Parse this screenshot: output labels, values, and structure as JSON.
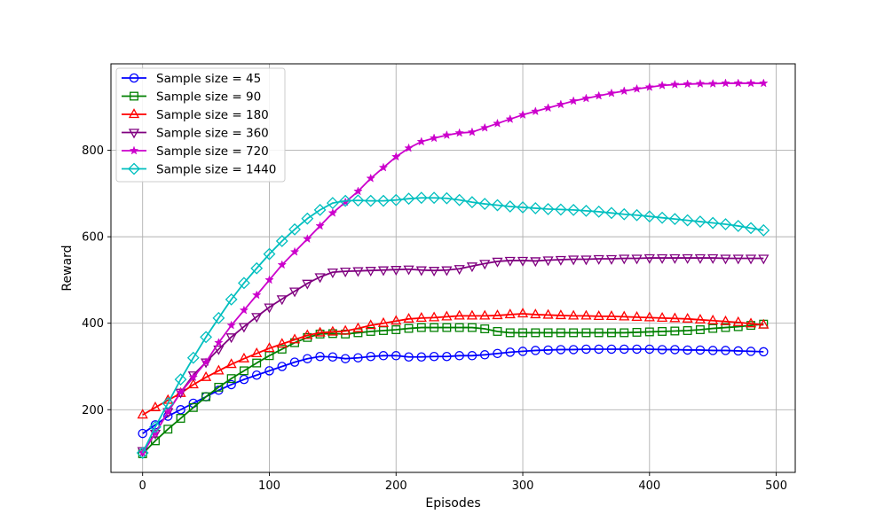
{
  "chart_data": {
    "type": "line",
    "xlabel": "Episodes",
    "ylabel": "Reward",
    "xlim": [
      -25,
      515
    ],
    "ylim": [
      55,
      1000
    ],
    "xticks": [
      0,
      100,
      200,
      300,
      400,
      500
    ],
    "yticks": [
      200,
      400,
      600,
      800
    ],
    "grid": true,
    "legend_position": "top-left",
    "x": [
      0,
      10,
      20,
      30,
      40,
      50,
      60,
      70,
      80,
      90,
      100,
      110,
      120,
      130,
      140,
      150,
      160,
      170,
      180,
      190,
      200,
      210,
      220,
      230,
      240,
      250,
      260,
      270,
      280,
      290,
      300,
      310,
      320,
      330,
      340,
      350,
      360,
      370,
      380,
      390,
      400,
      410,
      420,
      430,
      440,
      450,
      460,
      470,
      480,
      490
    ],
    "series": [
      {
        "name": "Sample size = 45",
        "color": "#0000ff",
        "marker": "circle",
        "values": [
          145,
          165,
          185,
          200,
          215,
          230,
          245,
          258,
          270,
          280,
          290,
          300,
          310,
          318,
          323,
          322,
          318,
          320,
          323,
          325,
          325,
          322,
          322,
          323,
          323,
          325,
          325,
          327,
          330,
          333,
          335,
          337,
          338,
          339,
          339,
          340,
          340,
          340,
          340,
          340,
          340,
          339,
          339,
          338,
          338,
          337,
          337,
          336,
          335,
          334
        ]
      },
      {
        "name": "Sample size = 90",
        "color": "#008000",
        "marker": "square",
        "values": [
          98,
          128,
          155,
          180,
          205,
          230,
          252,
          272,
          290,
          308,
          325,
          340,
          355,
          367,
          375,
          376,
          375,
          378,
          381,
          383,
          385,
          388,
          390,
          390,
          390,
          390,
          390,
          387,
          381,
          378,
          378,
          378,
          378,
          378,
          378,
          378,
          378,
          378,
          378,
          379,
          380,
          381,
          382,
          383,
          385,
          388,
          390,
          392,
          395,
          398
        ]
      },
      {
        "name": "Sample size = 180",
        "color": "#ff0000",
        "marker": "triangle-up",
        "values": [
          188,
          205,
          222,
          238,
          258,
          275,
          290,
          305,
          318,
          330,
          342,
          352,
          362,
          372,
          378,
          380,
          382,
          388,
          395,
          400,
          405,
          410,
          412,
          413,
          415,
          417,
          417,
          417,
          418,
          420,
          422,
          420,
          419,
          418,
          417,
          417,
          416,
          416,
          415,
          414,
          413,
          412,
          411,
          410,
          408,
          406,
          404,
          402,
          399,
          396
        ]
      },
      {
        "name": "Sample size = 360",
        "color": "#800080",
        "marker": "triangle-down",
        "values": [
          105,
          145,
          195,
          240,
          280,
          310,
          340,
          368,
          392,
          415,
          437,
          456,
          474,
          492,
          507,
          518,
          520,
          521,
          522,
          523,
          524,
          525,
          523,
          522,
          523,
          526,
          532,
          538,
          543,
          545,
          545,
          544,
          546,
          547,
          548,
          548,
          549,
          549,
          550,
          550,
          551,
          551,
          551,
          551,
          551,
          551,
          550,
          550,
          550,
          550
        ]
      },
      {
        "name": "Sample size = 720",
        "color": "#cc00cc",
        "marker": "star",
        "values": [
          100,
          145,
          195,
          240,
          275,
          310,
          355,
          395,
          430,
          465,
          500,
          535,
          565,
          595,
          625,
          655,
          680,
          705,
          735,
          760,
          785,
          805,
          820,
          828,
          835,
          840,
          842,
          852,
          862,
          872,
          882,
          890,
          898,
          906,
          914,
          920,
          926,
          932,
          937,
          942,
          946,
          950,
          952,
          953,
          954,
          954,
          955,
          955,
          955,
          955
        ]
      },
      {
        "name": "Sample size = 1440",
        "color": "#00bfbf",
        "marker": "diamond",
        "values": [
          100,
          160,
          215,
          270,
          320,
          368,
          412,
          455,
          493,
          527,
          560,
          590,
          617,
          642,
          662,
          678,
          683,
          684,
          683,
          683,
          685,
          688,
          690,
          690,
          689,
          685,
          680,
          676,
          673,
          670,
          668,
          666,
          664,
          663,
          662,
          660,
          658,
          655,
          652,
          650,
          647,
          644,
          641,
          638,
          635,
          632,
          629,
          625,
          620,
          615
        ]
      }
    ]
  }
}
